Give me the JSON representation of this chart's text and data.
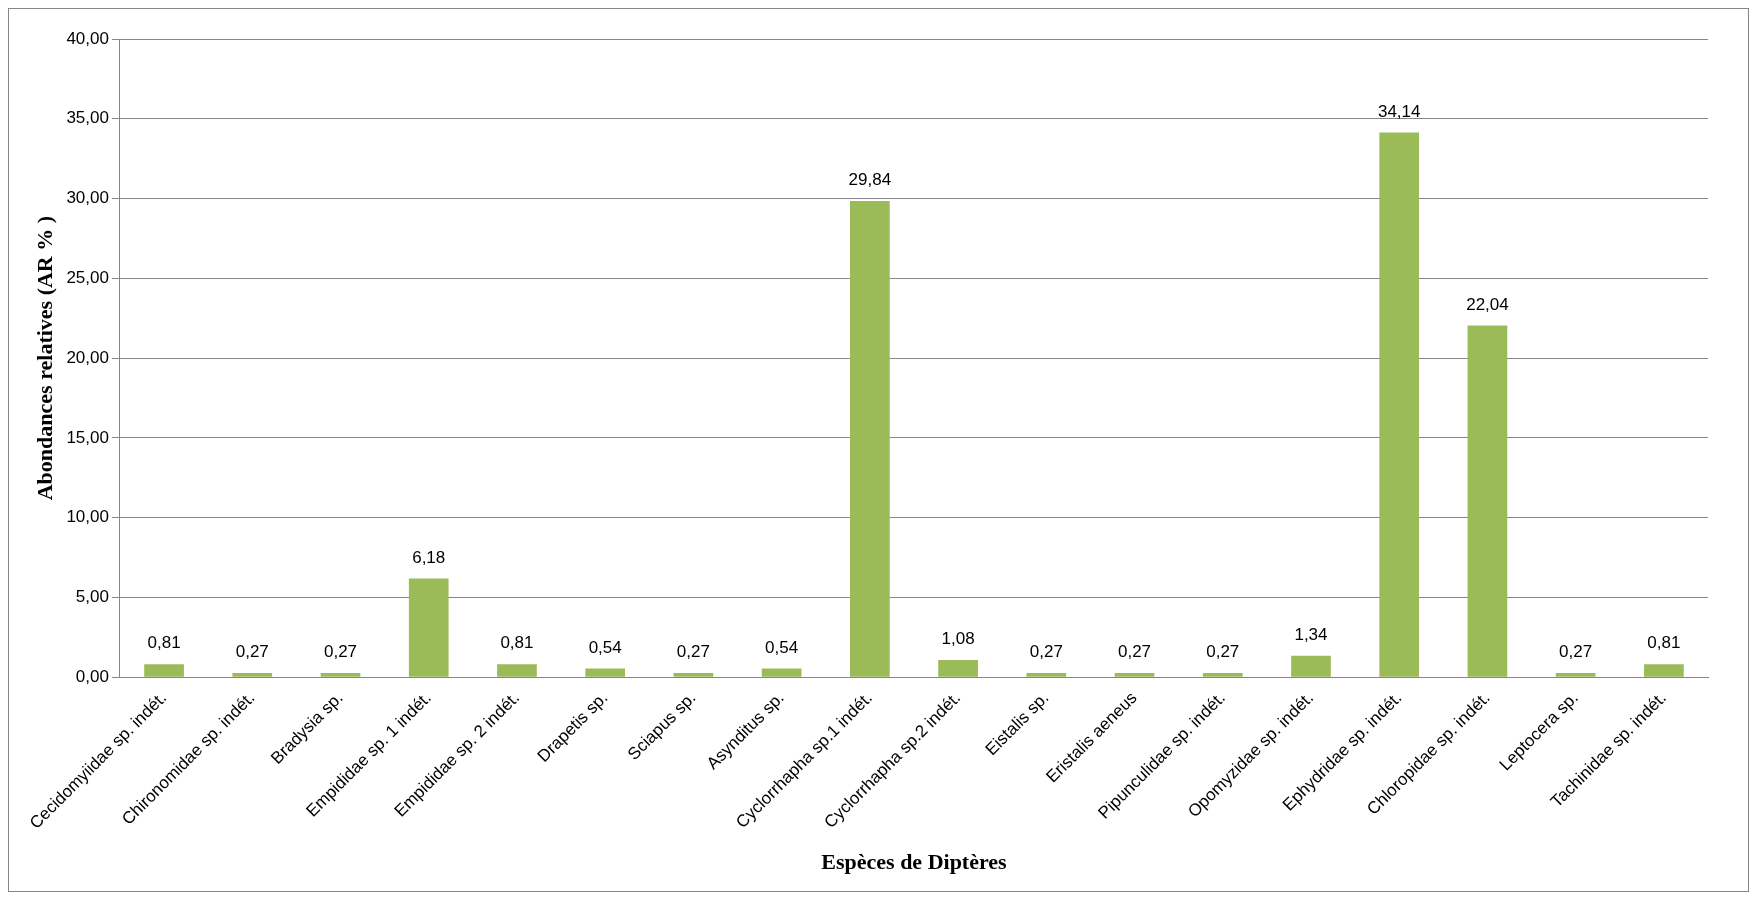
{
  "chart_data": {
    "type": "bar",
    "xlabel": "Espèces de Diptères",
    "ylabel": "Abondances relatives (AR % )",
    "categories": [
      "Cecidomyiidae sp. indét.",
      "Chironomidae sp. indét.",
      "Bradysia sp.",
      "Empididae sp. 1 indét.",
      "Empididae sp. 2 indét.",
      "Drapetis sp.",
      "Sciapus sp.",
      "Asynditus sp.",
      "Cyclorrhapha sp.1 indét.",
      "Cyclorrhapha sp.2 indét.",
      "Eistalis sp.",
      "Eristalis aeneus",
      "Pipunculidae sp. indét.",
      "Opomyzidae sp. indét.",
      "Ephydridae sp. indét.",
      "Chloropidae sp. indét.",
      "Leptocera sp.",
      "Tachinidae sp. indét."
    ],
    "values": [
      0.81,
      0.27,
      0.27,
      6.18,
      0.81,
      0.54,
      0.27,
      0.54,
      29.84,
      1.08,
      0.27,
      0.27,
      0.27,
      1.34,
      34.14,
      22.04,
      0.27,
      0.81
    ],
    "value_labels": [
      "0,81",
      "0,27",
      "0,27",
      "6,18",
      "0,81",
      "0,54",
      "0,27",
      "0,54",
      "29,84",
      "1,08",
      "0,27",
      "0,27",
      "0,27",
      "1,34",
      "34,14",
      "22,04",
      "0,27",
      "0,81"
    ],
    "color": "#9bbb59",
    "ylim": [
      0,
      40
    ],
    "yticks": [
      {
        "value": 0,
        "label": "0,00"
      },
      {
        "value": 5,
        "label": "5,00"
      },
      {
        "value": 10,
        "label": "10,00"
      },
      {
        "value": 15,
        "label": "15,00"
      },
      {
        "value": 20,
        "label": "20,00"
      },
      {
        "value": 25,
        "label": "25,00"
      },
      {
        "value": 30,
        "label": "30,00"
      },
      {
        "value": 35,
        "label": "35,00"
      },
      {
        "value": 40,
        "label": "40,00"
      }
    ],
    "grid": "y",
    "legend": false
  }
}
